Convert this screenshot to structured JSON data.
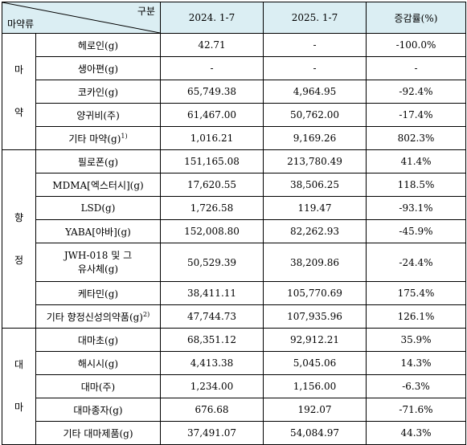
{
  "header": {
    "corner_top": "구분",
    "corner_bottom": "마약류",
    "col1": "2024. 1-7",
    "col2": "2025. 1-7",
    "col3": "증감률(%)"
  },
  "groups": [
    {
      "label_top": "마",
      "label_bottom": "약",
      "rows": [
        {
          "item": "헤로인(g)",
          "v2024": "42.71",
          "v2025": "-",
          "change": "-100.0%"
        },
        {
          "item": "생아편(g)",
          "v2024": "-",
          "v2025": "-",
          "change": "-"
        },
        {
          "item": "코카인(g)",
          "v2024": "65,749.38",
          "v2025": "4,964.95",
          "change": "-92.4%"
        },
        {
          "item": "양귀비(주)",
          "v2024": "61,467.00",
          "v2025": "50,762.00",
          "change": "-17.4%"
        },
        {
          "item": "기타 마약(g)",
          "sup": "1)",
          "v2024": "1,016.21",
          "v2025": "9,169.26",
          "change": "802.3%"
        }
      ]
    },
    {
      "label_top": "향",
      "label_bottom": "정",
      "rows": [
        {
          "item": "필로폰(g)",
          "v2024": "151,165.08",
          "v2025": "213,780.49",
          "change": "41.4%"
        },
        {
          "item": "MDMA[엑스터시](g)",
          "v2024": "17,620.55",
          "v2025": "38,506.25",
          "change": "118.5%"
        },
        {
          "item": "LSD(g)",
          "v2024": "1,726.58",
          "v2025": "119.47",
          "change": "-93.1%"
        },
        {
          "item": "YABA[야바](g)",
          "v2024": "152,008.80",
          "v2025": "82,262.93",
          "change": "-45.9%"
        },
        {
          "item": "JWH-018 및 그 유사체(g)",
          "item_line1": "JWH-018 및 그",
          "item_line2": "유사체(g)",
          "v2024": "50,529.39",
          "v2025": "38,209.86",
          "change": "-24.4%"
        },
        {
          "item": "케타민(g)",
          "v2024": "38,411.11",
          "v2025": "105,770.69",
          "change": "175.4%"
        },
        {
          "item": "기타 향정신성의약품(g)",
          "sup": "2)",
          "v2024": "47,744.73",
          "v2025": "107,935.96",
          "change": "126.1%"
        }
      ]
    },
    {
      "label_top": "대",
      "label_bottom": "마",
      "rows": [
        {
          "item": "대마초(g)",
          "v2024": "68,351.12",
          "v2025": "92,912.21",
          "change": "35.9%"
        },
        {
          "item": "해시시(g)",
          "v2024": "4,413.38",
          "v2025": "5,045.06",
          "change": "14.3%"
        },
        {
          "item": "대마(주)",
          "v2024": "1,234.00",
          "v2025": "1,156.00",
          "change": "-6.3%"
        },
        {
          "item": "대마종자(g)",
          "v2024": "676.68",
          "v2025": "192.07",
          "change": "-71.6%"
        },
        {
          "item": "기타 대마제품(g)",
          "v2024": "37,491.07",
          "v2025": "54,084.97",
          "change": "44.3%"
        }
      ]
    }
  ],
  "colors": {
    "header_bg": "#dbeef3",
    "border": "#000000"
  }
}
